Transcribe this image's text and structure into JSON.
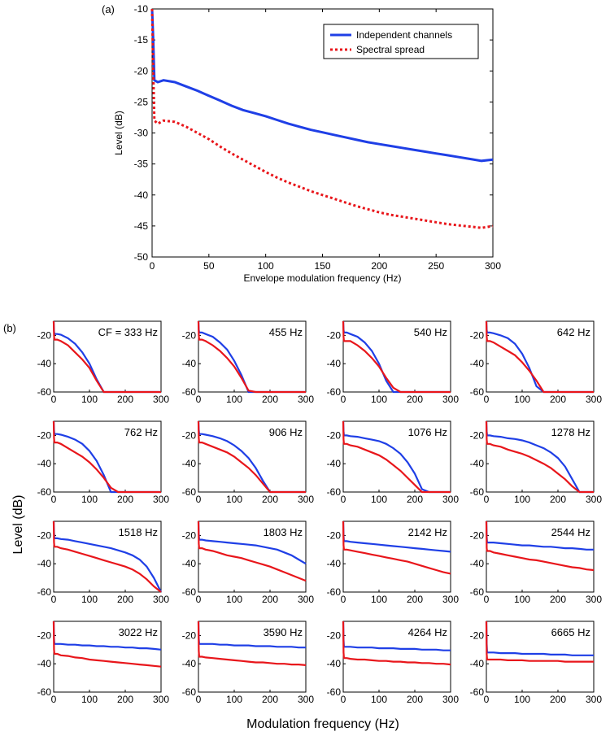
{
  "panel_a_label": "(a)",
  "panel_b_label": "(b)",
  "grid_ylabel": "Level (dB)",
  "grid_xlabel": "Modulation frequency (Hz)",
  "colors": {
    "series_1": "#1f3fe6",
    "series_2": "#e8161b"
  },
  "chart_data": [
    {
      "type": "line",
      "panel": "(a)",
      "xlabel": "Envelope modulation frequency (Hz)",
      "ylabel": "Level (dB)",
      "xlim": [
        0,
        300
      ],
      "ylim": [
        -50,
        -10
      ],
      "xticks": [
        0,
        50,
        100,
        150,
        200,
        250,
        300
      ],
      "yticks": [
        -50,
        -45,
        -40,
        -35,
        -30,
        -25,
        -20,
        -15,
        -10
      ],
      "legend_position": "top-right",
      "series": [
        {
          "name": "Independent channels",
          "style": "solid",
          "color": "#1f3fe6",
          "x": [
            0,
            1,
            2,
            5,
            10,
            20,
            30,
            40,
            50,
            60,
            70,
            80,
            90,
            100,
            110,
            120,
            130,
            140,
            150,
            160,
            170,
            180,
            190,
            200,
            210,
            220,
            230,
            240,
            250,
            260,
            270,
            280,
            290,
            300
          ],
          "y": [
            -10,
            -15,
            -21.5,
            -21.8,
            -21.5,
            -21.8,
            -22.5,
            -23.2,
            -24,
            -24.8,
            -25.6,
            -26.3,
            -26.8,
            -27.3,
            -27.9,
            -28.5,
            -29,
            -29.5,
            -29.9,
            -30.3,
            -30.7,
            -31.1,
            -31.5,
            -31.8,
            -32.1,
            -32.4,
            -32.7,
            -33,
            -33.3,
            -33.6,
            -33.9,
            -34.2,
            -34.5,
            -34.3
          ]
        },
        {
          "name": "Spectral spread",
          "style": "dotted",
          "color": "#e8161b",
          "x": [
            0,
            1,
            2,
            5,
            10,
            20,
            30,
            40,
            50,
            60,
            70,
            80,
            90,
            100,
            110,
            120,
            130,
            140,
            150,
            160,
            170,
            180,
            190,
            200,
            210,
            220,
            230,
            240,
            250,
            260,
            270,
            280,
            290,
            300
          ],
          "y": [
            -10,
            -20,
            -28,
            -28.5,
            -28,
            -28.2,
            -29,
            -30,
            -31,
            -32.2,
            -33.3,
            -34.3,
            -35.3,
            -36.3,
            -37.2,
            -38,
            -38.7,
            -39.4,
            -40,
            -40.6,
            -41.2,
            -41.8,
            -42.3,
            -42.8,
            -43.2,
            -43.5,
            -43.8,
            -44.1,
            -44.4,
            -44.7,
            -44.9,
            -45.1,
            -45.3,
            -45
          ]
        }
      ]
    },
    {
      "type": "line",
      "panel": "(b)",
      "layout": "4x4 small multiples",
      "xlim": [
        0,
        300
      ],
      "ylim": [
        -60,
        -10
      ],
      "xticks": [
        0,
        100,
        200,
        300
      ],
      "yticks": [
        -60,
        -40,
        -20
      ],
      "series_names": [
        "Independent channels",
        "Spectral spread"
      ],
      "x": [
        0,
        1,
        2,
        5,
        10,
        20,
        40,
        60,
        80,
        100,
        120,
        140,
        160,
        180,
        200,
        220,
        240,
        260,
        280,
        300
      ],
      "subplots": [
        {
          "label": "CF = 333 Hz",
          "blue": [
            -10,
            -17,
            -19,
            -19,
            -19,
            -19.5,
            -22,
            -26,
            -32,
            -40,
            -51,
            -60,
            -60,
            -60,
            -60,
            -60,
            -60,
            -60,
            -60,
            -60
          ],
          "red": [
            -10,
            -20,
            -23,
            -23,
            -23,
            -24,
            -27,
            -32,
            -37,
            -43,
            -52,
            -60,
            -60,
            -60,
            -60,
            -60,
            -60,
            -60,
            -60,
            -60
          ]
        },
        {
          "label": "455 Hz",
          "blue": [
            -10,
            -16,
            -18,
            -18,
            -18,
            -19,
            -21,
            -25,
            -30,
            -38,
            -48,
            -60,
            -60,
            -60,
            -60,
            -60,
            -60,
            -60,
            -60,
            -60
          ],
          "red": [
            -10,
            -20,
            -23,
            -23,
            -23,
            -24,
            -27,
            -31,
            -36,
            -42,
            -50,
            -59,
            -60,
            -60,
            -60,
            -60,
            -60,
            -60,
            -60,
            -60
          ]
        },
        {
          "label": "540 Hz",
          "blue": [
            -10,
            -16,
            -18,
            -18,
            -18,
            -19,
            -21,
            -25,
            -31,
            -40,
            -52,
            -60,
            -60,
            -60,
            -60,
            -60,
            -60,
            -60,
            -60,
            -60
          ],
          "red": [
            -10,
            -21,
            -24,
            -24,
            -24,
            -24,
            -27,
            -31,
            -36,
            -42,
            -50,
            -57,
            -60,
            -60,
            -60,
            -60,
            -60,
            -60,
            -60,
            -60
          ]
        },
        {
          "label": "642 Hz",
          "blue": [
            -10,
            -16,
            -18,
            -18,
            -18,
            -18.5,
            -20,
            -22,
            -26,
            -33,
            -43,
            -56,
            -60,
            -60,
            -60,
            -60,
            -60,
            -60,
            -60,
            -60
          ],
          "red": [
            -10,
            -21,
            -24,
            -24,
            -24,
            -25,
            -28,
            -31,
            -34,
            -39,
            -45,
            -52,
            -60,
            -60,
            -60,
            -60,
            -60,
            -60,
            -60,
            -60
          ]
        },
        {
          "label": "762 Hz",
          "blue": [
            -10,
            -16,
            -19,
            -19,
            -19,
            -19.5,
            -21,
            -23,
            -26,
            -31,
            -38,
            -48,
            -60,
            -60,
            -60,
            -60,
            -60,
            -60,
            -60,
            -60
          ],
          "red": [
            -10,
            -22,
            -25,
            -25,
            -25,
            -26,
            -29,
            -32,
            -35,
            -39,
            -44,
            -50,
            -57,
            -60,
            -60,
            -60,
            -60,
            -60,
            -60,
            -60
          ]
        },
        {
          "label": "906 Hz",
          "blue": [
            -10,
            -16,
            -19,
            -19,
            -19,
            -19.5,
            -20.5,
            -22,
            -24,
            -27,
            -31,
            -36,
            -43,
            -52,
            -60,
            -60,
            -60,
            -60,
            -60,
            -60
          ],
          "red": [
            -10,
            -22,
            -25,
            -25,
            -25,
            -26,
            -28,
            -30,
            -32,
            -35,
            -39,
            -43,
            -48,
            -54,
            -60,
            -60,
            -60,
            -60,
            -60,
            -60
          ]
        },
        {
          "label": "1076 Hz",
          "blue": [
            -10,
            -17,
            -20,
            -20,
            -20,
            -20.5,
            -21,
            -22,
            -23,
            -24,
            -26,
            -29,
            -33,
            -39,
            -47,
            -58,
            -60,
            -60,
            -60,
            -60
          ],
          "red": [
            -10,
            -23,
            -26,
            -26,
            -26,
            -27,
            -28,
            -30,
            -32,
            -34,
            -37,
            -41,
            -45,
            -50,
            -55,
            -60,
            -60,
            -60,
            -60,
            -60
          ]
        },
        {
          "label": "1278 Hz",
          "blue": [
            -10,
            -17,
            -20,
            -20,
            -20,
            -20.5,
            -21,
            -22,
            -22.5,
            -23.5,
            -25,
            -27,
            -29,
            -32,
            -36,
            -42,
            -51,
            -60,
            -60,
            -60
          ],
          "red": [
            -10,
            -23,
            -26,
            -26,
            -26,
            -27,
            -28,
            -30,
            -31.5,
            -33,
            -35,
            -37.5,
            -40,
            -43,
            -47,
            -51,
            -56,
            -60,
            -60,
            -60
          ]
        },
        {
          "label": "1518 Hz",
          "blue": [
            -10,
            -18,
            -22,
            -22,
            -22,
            -22.5,
            -23,
            -24,
            -25,
            -26,
            -27,
            -28,
            -29,
            -30.5,
            -32,
            -34,
            -37,
            -42,
            -50,
            -60
          ],
          "red": [
            -10,
            -25,
            -28,
            -28,
            -28,
            -29,
            -30,
            -31.5,
            -33,
            -34.5,
            -36,
            -37.5,
            -39,
            -40.5,
            -42,
            -44,
            -47,
            -51,
            -56,
            -60
          ]
        },
        {
          "label": "1803 Hz",
          "blue": [
            -10,
            -19,
            -23,
            -23,
            -23,
            -23.5,
            -24,
            -24.5,
            -25,
            -25.5,
            -26,
            -26.5,
            -27,
            -28,
            -29,
            -30,
            -32,
            -34,
            -37,
            -40
          ],
          "red": [
            -10,
            -26,
            -29,
            -29,
            -29,
            -30,
            -31,
            -32.5,
            -34,
            -35,
            -36,
            -37.5,
            -39,
            -40.5,
            -42,
            -44,
            -46,
            -48,
            -50,
            -52
          ]
        },
        {
          "label": "2142 Hz",
          "blue": [
            -10,
            -20,
            -24,
            -24,
            -24,
            -24.5,
            -25,
            -25.5,
            -26,
            -26.5,
            -27,
            -27.5,
            -28,
            -28.5,
            -29,
            -29.5,
            -30,
            -30.5,
            -31,
            -31.5
          ],
          "red": [
            -10,
            -27,
            -30,
            -30,
            -30,
            -30.5,
            -31.5,
            -32.5,
            -33.5,
            -34.5,
            -35.5,
            -36.5,
            -37.5,
            -38.5,
            -40,
            -41.5,
            -43,
            -44.5,
            -46,
            -47
          ]
        },
        {
          "label": "2544 Hz",
          "blue": [
            -10,
            -21,
            -25,
            -25,
            -25,
            -25,
            -25.5,
            -26,
            -26.5,
            -27,
            -27,
            -27.5,
            -28,
            -28,
            -28.5,
            -29,
            -29,
            -29.5,
            -30,
            -30
          ],
          "red": [
            -10,
            -29,
            -31,
            -31,
            -31,
            -32,
            -33,
            -34,
            -35,
            -36,
            -37,
            -37.5,
            -38.5,
            -39.5,
            -40.5,
            -41.5,
            -42.5,
            -43,
            -44,
            -44.5
          ]
        },
        {
          "label": "3022 Hz",
          "blue": [
            -10,
            -22,
            -26,
            -26,
            -26,
            -26,
            -26.5,
            -26.5,
            -27,
            -27,
            -27.5,
            -27.5,
            -28,
            -28,
            -28.5,
            -28.5,
            -29,
            -29,
            -29.5,
            -30
          ],
          "red": [
            -10,
            -30,
            -33,
            -33,
            -33,
            -34,
            -34.5,
            -35.5,
            -36,
            -37,
            -37.5,
            -38,
            -38.5,
            -39,
            -39.5,
            -40,
            -40.5,
            -41,
            -41.5,
            -42
          ]
        },
        {
          "label": "3590 Hz",
          "blue": [
            -10,
            -22,
            -26,
            -26,
            -26,
            -26,
            -26,
            -26.5,
            -26.5,
            -27,
            -27,
            -27,
            -27.5,
            -27.5,
            -27.5,
            -28,
            -28,
            -28,
            -28.5,
            -28.5
          ],
          "red": [
            -10,
            -31,
            -35,
            -35,
            -35,
            -35.5,
            -36,
            -36.5,
            -37,
            -37.5,
            -38,
            -38.5,
            -39,
            -39,
            -39.5,
            -40,
            -40,
            -40.5,
            -40.5,
            -41
          ]
        },
        {
          "label": "4264 Hz",
          "blue": [
            -10,
            -23,
            -28,
            -28,
            -28,
            -28,
            -28.5,
            -28.5,
            -28.5,
            -29,
            -29,
            -29,
            -29.5,
            -29.5,
            -29.5,
            -30,
            -30,
            -30,
            -30.5,
            -30.5
          ],
          "red": [
            -10,
            -32,
            -36,
            -36,
            -36,
            -36.5,
            -37,
            -37,
            -37.5,
            -38,
            -38,
            -38.5,
            -38.5,
            -39,
            -39,
            -39.5,
            -39.5,
            -40,
            -40,
            -40.5
          ]
        },
        {
          "label": "6665 Hz",
          "blue": [
            -10,
            -26,
            -32,
            -32,
            -32,
            -32,
            -32.5,
            -32.5,
            -32.5,
            -33,
            -33,
            -33,
            -33,
            -33.5,
            -33.5,
            -33.5,
            -34,
            -34,
            -34,
            -34
          ],
          "red": [
            -10,
            -33,
            -37,
            -37,
            -37,
            -37,
            -37,
            -37.5,
            -37.5,
            -37.5,
            -38,
            -38,
            -38,
            -38,
            -38,
            -38.5,
            -38.5,
            -38.5,
            -38.5,
            -38.5
          ]
        }
      ]
    }
  ]
}
